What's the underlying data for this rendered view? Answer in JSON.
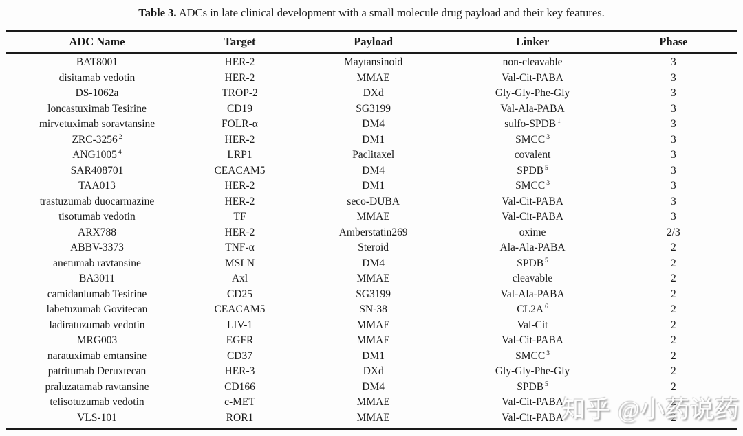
{
  "title": {
    "prefix": "Table 3.",
    "text": " ADCs in late clinical development with a small molecule drug payload and their key features."
  },
  "watermark": {
    "text": "知乎 @小药说药"
  },
  "colors": {
    "text": "#1b1b1b",
    "rule": "#1a1a1a",
    "background": "#fdfdfd",
    "watermark": "#ffffff",
    "watermark_shadow": "#9b9b9b"
  },
  "table": {
    "headers": [
      "ADC Name",
      "Target",
      "Payload",
      "Linker",
      "Phase"
    ],
    "rows": [
      [
        "BAT8001",
        "HER-2",
        "Maytansinoid",
        "non-cleavable",
        "3"
      ],
      [
        "disitamab vedotin",
        "HER-2",
        "MMAE",
        "Val-Cit-PABA",
        "3"
      ],
      [
        "DS-1062a",
        "TROP-2",
        "DXd",
        "Gly-Gly-Phe-Gly",
        "3"
      ],
      [
        "loncastuximab Tesirine",
        "CD19",
        "SG3199",
        "Val-Ala-PABA",
        "3"
      ],
      [
        "mirvetuximab soravtansine",
        "FOLR-α",
        "DM4",
        {
          "text": "sulfo-SPDB",
          "sup": "1"
        },
        "3"
      ],
      [
        {
          "text": "ZRC-3256",
          "sup": "2"
        },
        "HER-2",
        "DM1",
        {
          "text": "SMCC",
          "sup": "3"
        },
        "3"
      ],
      [
        {
          "text": "ANG1005",
          "sup": "4"
        },
        "LRP1",
        "Paclitaxel",
        "covalent",
        "3"
      ],
      [
        "SAR408701",
        "CEACAM5",
        "DM4",
        {
          "text": "SPDB",
          "sup": "5"
        },
        "3"
      ],
      [
        "TAA013",
        "HER-2",
        "DM1",
        {
          "text": "SMCC",
          "sup": "3"
        },
        "3"
      ],
      [
        "trastuzumab duocarmazine",
        "HER-2",
        "seco-DUBA",
        "Val-Cit-PABA",
        "3"
      ],
      [
        "tisotumab vedotin",
        "TF",
        "MMAE",
        "Val-Cit-PABA",
        "3"
      ],
      [
        "ARX788",
        "HER-2",
        "Amberstatin269",
        "oxime",
        "2/3"
      ],
      [
        "ABBV-3373",
        "TNF-α",
        "Steroid",
        "Ala-Ala-PABA",
        "2"
      ],
      [
        "anetumab ravtansine",
        "MSLN",
        "DM4",
        {
          "text": "SPDB",
          "sup": "5"
        },
        "2"
      ],
      [
        "BA3011",
        "Axl",
        "MMAE",
        "cleavable",
        "2"
      ],
      [
        "camidanlumab Tesirine",
        "CD25",
        "SG3199",
        "Val-Ala-PABA",
        "2"
      ],
      [
        "labetuzumab Govitecan",
        "CEACAM5",
        "SN-38",
        {
          "text": "CL2A",
          "sup": "6"
        },
        "2"
      ],
      [
        "ladiratuzumab vedotin",
        "LIV-1",
        "MMAE",
        "Val-Cit",
        "2"
      ],
      [
        "MRG003",
        "EGFR",
        "MMAE",
        "Val-Cit-PABA",
        "2"
      ],
      [
        "naratuximab emtansine",
        "CD37",
        "DM1",
        {
          "text": "SMCC",
          "sup": "3"
        },
        "2"
      ],
      [
        "patritumab Deruxtecan",
        "HER-3",
        "DXd",
        "Gly-Gly-Phe-Gly",
        "2"
      ],
      [
        "praluzatamab ravtansine",
        "CD166",
        "DM4",
        {
          "text": "SPDB",
          "sup": "5"
        },
        "2"
      ],
      [
        "telisotuzumab vedotin",
        "c-MET",
        "MMAE",
        "Val-Cit-PABA",
        "2"
      ],
      [
        "VLS-101",
        "ROR1",
        "MMAE",
        "Val-Cit-PABA",
        "2"
      ]
    ]
  }
}
